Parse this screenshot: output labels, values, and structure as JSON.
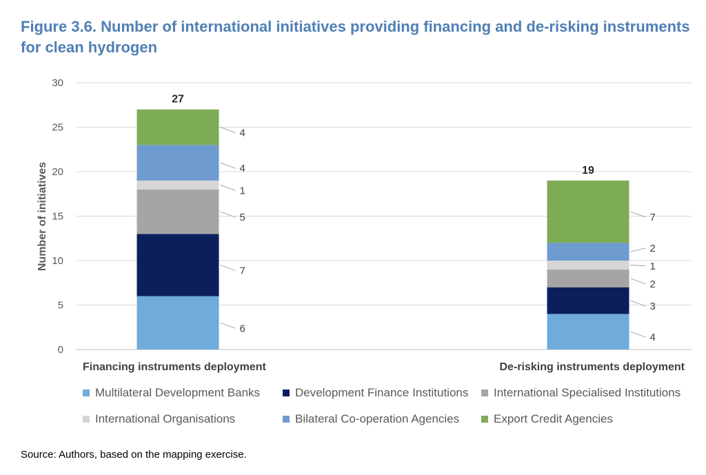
{
  "figure": {
    "title": "Figure  3.6. Number of international initiatives providing financing and de-risking instruments for clean hydrogen",
    "source": "Source: Authors, based on the mapping exercise."
  },
  "chart_data": {
    "type": "bar",
    "stacked": true,
    "title": "",
    "xlabel": "",
    "ylabel": "Number of initiatives",
    "ylim": [
      0,
      30
    ],
    "yticks": [
      0,
      5,
      10,
      15,
      20,
      25,
      30
    ],
    "grid": true,
    "legend_position": "bottom",
    "categories": [
      "Financing instruments deployment",
      "De-risking instruments deployment"
    ],
    "totals": [
      27,
      19
    ],
    "series": [
      {
        "name": "Multilateral Development Banks",
        "color": "#6fabdb",
        "values": [
          6,
          4
        ]
      },
      {
        "name": "Development Finance Institutions",
        "color": "#0b1f5c",
        "values": [
          7,
          3
        ]
      },
      {
        "name": "International Specialised Institutions",
        "color": "#a5a5a5",
        "values": [
          5,
          2
        ]
      },
      {
        "name": "International Organisations",
        "color": "#d6d6d6",
        "values": [
          1,
          1
        ]
      },
      {
        "name": "Bilateral Co-operation Agencies",
        "color": "#6e9bd0",
        "values": [
          4,
          2
        ]
      },
      {
        "name": "Export Credit Agencies",
        "color": "#7eac55",
        "values": [
          4,
          7
        ]
      }
    ]
  }
}
